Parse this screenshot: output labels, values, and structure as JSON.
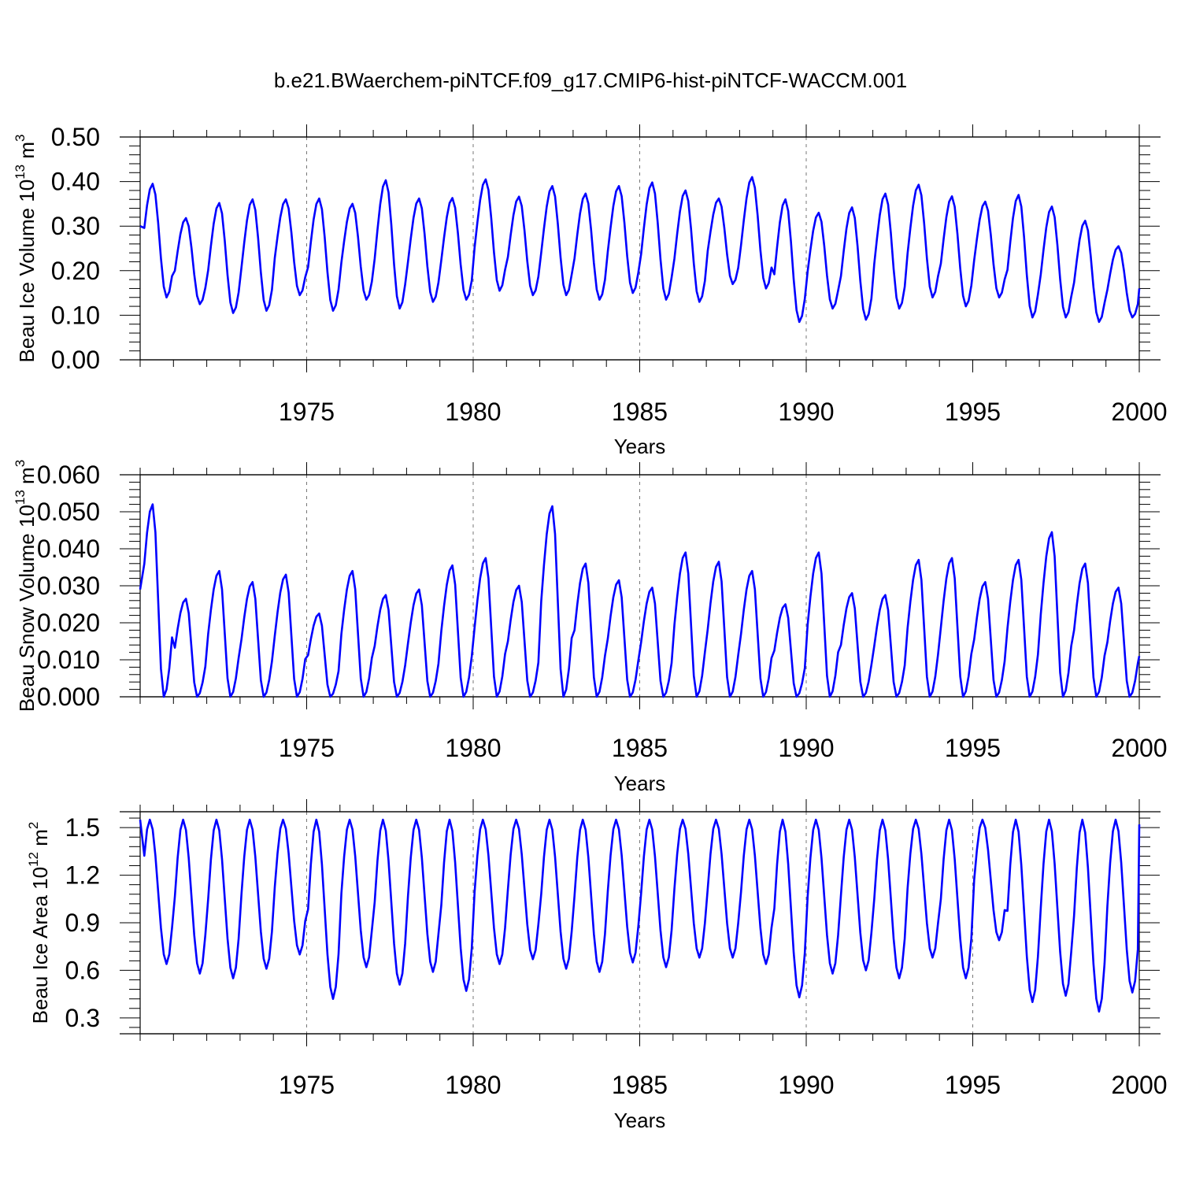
{
  "title": "b.e21.BWaerchem-piNTCF.f09_g17.CMIP6-hist-piNTCF-WACCM.001",
  "line_color": "#0000ff",
  "chart_data": [
    {
      "type": "line",
      "ylabel": "Beau Ice Volume 10",
      "ylabel_exp": "13",
      "ylabel_unit": " m",
      "ylabel_unit_exp": "3",
      "xlabel": "Years",
      "xlim": [
        1970.0,
        2000.0
      ],
      "ylim": [
        0.0,
        0.5
      ],
      "yticks": [
        0.0,
        0.1,
        0.2,
        0.3,
        0.4,
        0.5
      ],
      "ytick_labels": [
        "0.00",
        "0.10",
        "0.20",
        "0.30",
        "0.40",
        "0.50"
      ],
      "xticks": [
        1975,
        1980,
        1985,
        1990,
        1995,
        2000
      ],
      "xtick_labels": [
        "1975",
        "1980",
        "1985",
        "1990",
        "1995",
        "2000"
      ],
      "grid_x": [
        1975,
        1980,
        1985,
        1990
      ],
      "min_month": 9,
      "max_month": 4,
      "annual_min": [
        0.14,
        0.125,
        0.105,
        0.11,
        0.145,
        0.11,
        0.135,
        0.115,
        0.13,
        0.135,
        0.155,
        0.145,
        0.145,
        0.135,
        0.15,
        0.135,
        0.13,
        0.17,
        0.16,
        0.085,
        0.115,
        0.09,
        0.115,
        0.14,
        0.12,
        0.14,
        0.095,
        0.095,
        0.085,
        0.095
      ],
      "annual_max": [
        0.395,
        0.318,
        0.352,
        0.36,
        0.36,
        0.362,
        0.35,
        0.403,
        0.362,
        0.363,
        0.405,
        0.366,
        0.39,
        0.373,
        0.39,
        0.398,
        0.38,
        0.362,
        0.41,
        0.36,
        0.33,
        0.342,
        0.373,
        0.393,
        0.367,
        0.355,
        0.37,
        0.344,
        0.312,
        0.255
      ],
      "start_value": 0.3,
      "end_value": 0.16
    },
    {
      "type": "line",
      "ylabel": "Beau Snow Volume 10",
      "ylabel_exp": "13",
      "ylabel_unit": " m",
      "ylabel_unit_exp": "3",
      "xlabel": "Years",
      "xlim": [
        1970.0,
        2000.0
      ],
      "ylim": [
        0.0,
        0.06
      ],
      "yticks": [
        0.0,
        0.01,
        0.02,
        0.03,
        0.04,
        0.05,
        0.06
      ],
      "ytick_labels": [
        "0.000",
        "0.010",
        "0.020",
        "0.030",
        "0.040",
        "0.050",
        "0.060"
      ],
      "xticks": [
        1975,
        1980,
        1985,
        1990,
        1995,
        2000
      ],
      "xtick_labels": [
        "1975",
        "1980",
        "1985",
        "1990",
        "1995",
        "2000"
      ],
      "grid_x": [
        1975,
        1980,
        1985,
        1990
      ],
      "min_month": 8,
      "max_month": 4,
      "annual_min": [
        0.0,
        0.0,
        0.0,
        0.0,
        0.0,
        0.0,
        0.0,
        0.0,
        0.0,
        0.0,
        0.0,
        0.0,
        0.0,
        0.0,
        0.0,
        0.0,
        0.0,
        0.0,
        0.0,
        0.0,
        0.0,
        0.0,
        0.0,
        0.0,
        0.0,
        0.0,
        0.0,
        0.0,
        0.0,
        0.0
      ],
      "annual_max": [
        0.052,
        0.0265,
        0.034,
        0.031,
        0.033,
        0.0225,
        0.034,
        0.0275,
        0.029,
        0.0355,
        0.0375,
        0.03,
        0.0515,
        0.036,
        0.0315,
        0.0295,
        0.039,
        0.0365,
        0.034,
        0.025,
        0.039,
        0.028,
        0.0275,
        0.037,
        0.0375,
        0.031,
        0.037,
        0.0445,
        0.036,
        0.0295
      ],
      "start_value": 0.029,
      "end_value": 0.011
    },
    {
      "type": "line",
      "ylabel": "Beau Ice Area 10",
      "ylabel_exp": "12",
      "ylabel_unit": " m",
      "ylabel_unit_exp": "2",
      "xlabel": "Years",
      "xlim": [
        1970.0,
        2000.0
      ],
      "ylim": [
        0.2,
        1.6
      ],
      "yticks": [
        0.3,
        0.6,
        0.9,
        1.2,
        1.5
      ],
      "ytick_labels": [
        "0.3",
        "0.6",
        "0.9",
        "1.2",
        "1.5"
      ],
      "xticks": [
        1975,
        1980,
        1985,
        1990,
        1995,
        2000
      ],
      "xtick_labels": [
        "1975",
        "1980",
        "1985",
        "1990",
        "1995",
        "2000"
      ],
      "grid_x": [
        1975,
        1980,
        1985,
        1990,
        1995
      ],
      "min_month": 9,
      "max_month": 3,
      "annual_min": [
        0.64,
        0.58,
        0.55,
        0.61,
        0.7,
        0.42,
        0.62,
        0.51,
        0.59,
        0.47,
        0.64,
        0.67,
        0.61,
        0.59,
        0.65,
        0.62,
        0.68,
        0.68,
        0.64,
        0.43,
        0.58,
        0.6,
        0.55,
        0.68,
        0.55,
        0.79,
        0.4,
        0.44,
        0.34,
        0.46
      ],
      "annual_max": [
        1.55,
        1.55,
        1.55,
        1.55,
        1.55,
        1.55,
        1.55,
        1.55,
        1.55,
        1.55,
        1.55,
        1.55,
        1.55,
        1.55,
        1.55,
        1.55,
        1.55,
        1.55,
        1.55,
        1.55,
        1.55,
        1.55,
        1.55,
        1.55,
        1.55,
        1.55,
        1.55,
        1.55,
        1.55,
        1.55
      ],
      "start_value": 1.55,
      "end_value": 1.52
    }
  ]
}
